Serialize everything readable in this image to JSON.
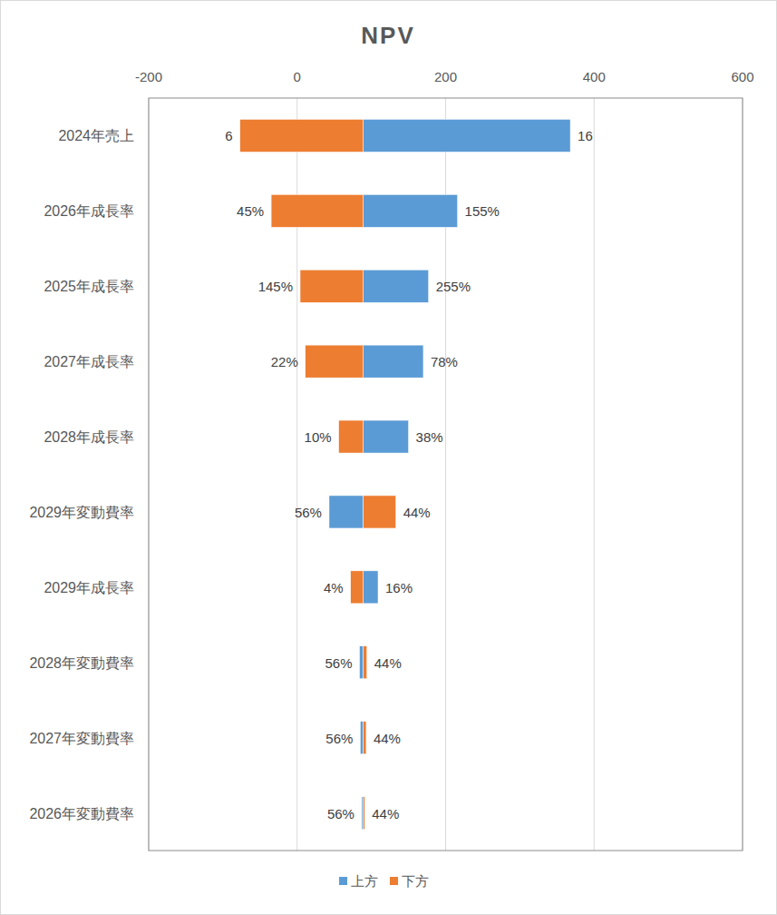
{
  "chart_data": {
    "type": "bar",
    "orientation": "horizontal",
    "title": "NPV",
    "categories": [
      "2024年売上",
      "2026年成長率",
      "2025年成長率",
      "2027年成長率",
      "2028年成長率",
      "2029年変動費率",
      "2029年成長率",
      "2028年変動費率",
      "2027年変動費率",
      "2026年変動費率"
    ],
    "base": 89,
    "series": [
      {
        "name": "上方",
        "color": "#5b9bd5",
        "values": [
          368,
          216,
          177,
          170,
          150,
          43,
          109,
          84,
          85,
          87
        ],
        "input_labels": [
          "16",
          "155%",
          "255%",
          "78%",
          "38%",
          "56%",
          "16%",
          "56%",
          "56%",
          "56%"
        ]
      },
      {
        "name": "下方",
        "color": "#ed7d31",
        "values": [
          -77,
          -35,
          4,
          11,
          56,
          133,
          72,
          94,
          93,
          91
        ],
        "input_labels": [
          "6",
          "45%",
          "145%",
          "22%",
          "10%",
          "44%",
          "4%",
          "44%",
          "44%",
          "44%"
        ]
      }
    ],
    "xlim": [
      -200,
      600
    ],
    "xticks": [
      -200,
      0,
      200,
      400,
      600
    ],
    "grid": true,
    "legend": "bottom",
    "data_labels": true
  }
}
